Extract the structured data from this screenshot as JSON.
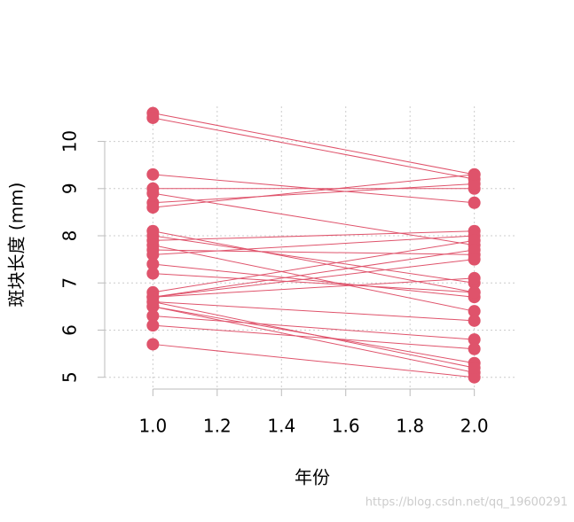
{
  "chart_data": {
    "type": "line",
    "xlabel": "年份",
    "ylabel": "斑块长度 (mm)",
    "color": "#df536b",
    "grid": true,
    "x": [
      1,
      2
    ],
    "series": [
      {
        "values": [
          10.6,
          9.3
        ]
      },
      {
        "values": [
          10.5,
          9.2
        ]
      },
      {
        "values": [
          9.3,
          8.7
        ]
      },
      {
        "values": [
          9.0,
          9.0
        ]
      },
      {
        "values": [
          8.9,
          7.8
        ]
      },
      {
        "values": [
          8.7,
          9.1
        ]
      },
      {
        "values": [
          8.6,
          9.3
        ]
      },
      {
        "values": [
          8.1,
          6.8
        ]
      },
      {
        "values": [
          8.0,
          7.0
        ]
      },
      {
        "values": [
          7.9,
          8.1
        ]
      },
      {
        "values": [
          7.8,
          6.4
        ]
      },
      {
        "values": [
          7.7,
          7.6
        ]
      },
      {
        "values": [
          7.6,
          8.0
        ]
      },
      {
        "values": [
          7.4,
          6.7
        ]
      },
      {
        "values": [
          7.2,
          6.8
        ]
      },
      {
        "values": [
          6.8,
          7.9
        ]
      },
      {
        "values": [
          6.7,
          7.7
        ]
      },
      {
        "values": [
          6.7,
          7.5
        ]
      },
      {
        "values": [
          6.6,
          6.2
        ]
      },
      {
        "values": [
          6.5,
          5.3
        ]
      },
      {
        "values": [
          6.5,
          5.1
        ]
      },
      {
        "values": [
          6.3,
          5.8
        ]
      },
      {
        "values": [
          6.1,
          5.6
        ]
      },
      {
        "values": [
          5.7,
          5.0
        ]
      },
      {
        "values": [
          6.7,
          7.1
        ]
      },
      {
        "values": [
          6.6,
          5.2
        ]
      }
    ],
    "xlim": [
      0.85,
      2.15
    ],
    "xticks": [
      {
        "value": 1,
        "label": "1.0"
      },
      1.2,
      1.4,
      1.6,
      1.8,
      {
        "value": 2,
        "label": "2.0"
      }
    ],
    "ylim": [
      4.75,
      10.8
    ],
    "yticks": [
      5,
      6,
      7,
      8,
      9,
      10
    ]
  },
  "watermark": "https://blog.csdn.net/qq_19600291"
}
